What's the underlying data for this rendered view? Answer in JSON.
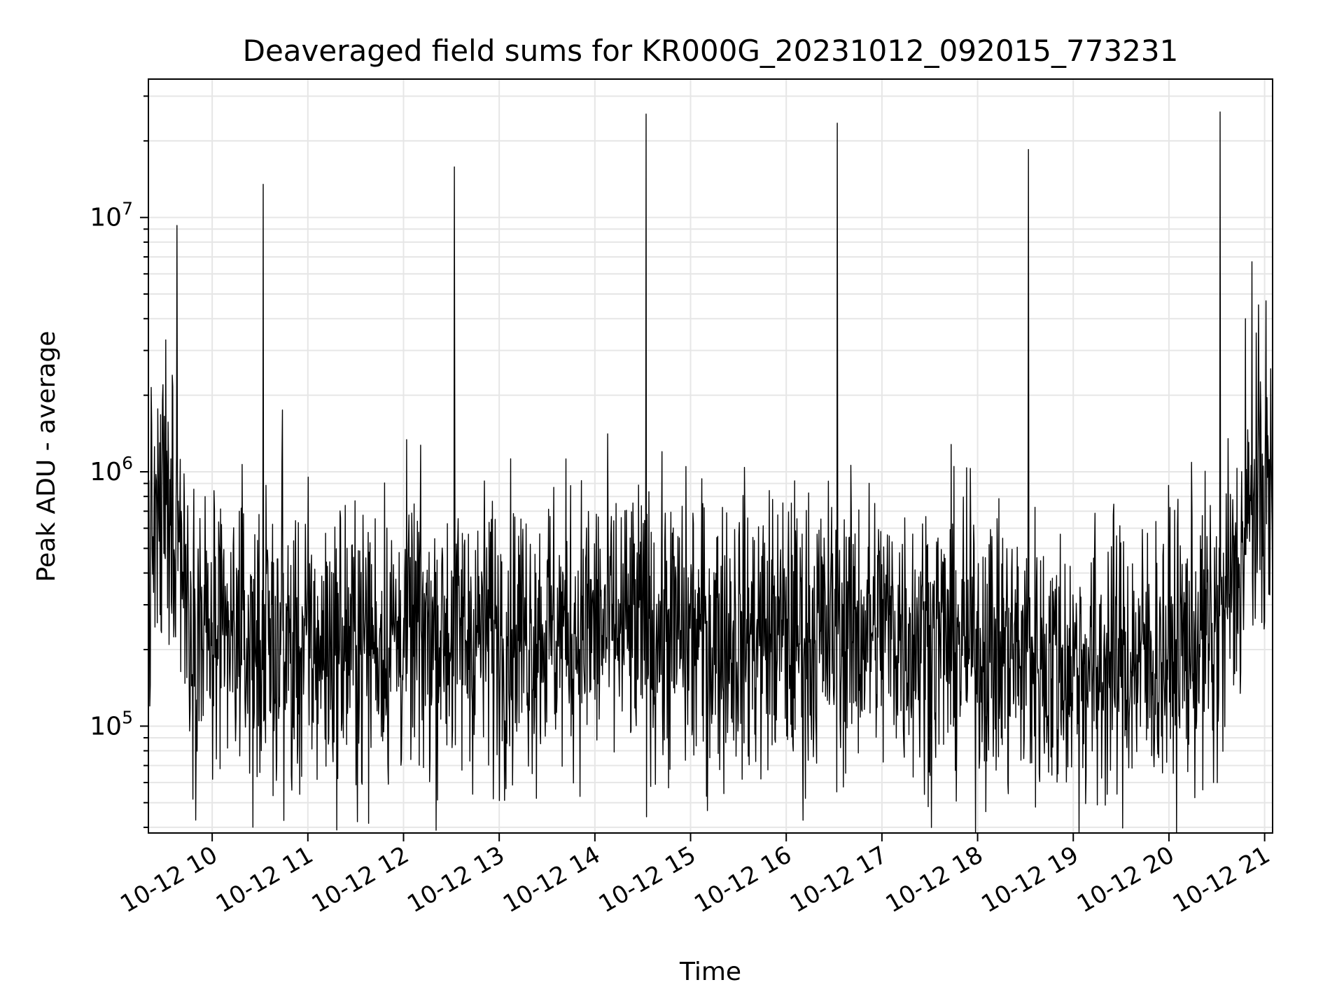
{
  "chart_data": {
    "type": "line",
    "title": "Deaveraged field sums for KR000G_20231012_092015_773231",
    "xlabel": "Time",
    "ylabel": "Peak ADU - average",
    "y_scale": "log",
    "ylim": [
      38000,
      35000000
    ],
    "xlim": [
      "2023-10-12 09:20",
      "2023-10-12 21:05"
    ],
    "grid": true,
    "line_color": "#000000",
    "grid_color": "#e6e6e6",
    "x_ticks": [
      {
        "t": "2023-10-12 10:00",
        "label": "10-12 10"
      },
      {
        "t": "2023-10-12 11:00",
        "label": "10-12 11"
      },
      {
        "t": "2023-10-12 12:00",
        "label": "10-12 12"
      },
      {
        "t": "2023-10-12 13:00",
        "label": "10-12 13"
      },
      {
        "t": "2023-10-12 14:00",
        "label": "10-12 14"
      },
      {
        "t": "2023-10-12 15:00",
        "label": "10-12 15"
      },
      {
        "t": "2023-10-12 16:00",
        "label": "10-12 16"
      },
      {
        "t": "2023-10-12 17:00",
        "label": "10-12 17"
      },
      {
        "t": "2023-10-12 18:00",
        "label": "10-12 18"
      },
      {
        "t": "2023-10-12 19:00",
        "label": "10-12 19"
      },
      {
        "t": "2023-10-12 20:00",
        "label": "10-12 20"
      },
      {
        "t": "2023-10-12 21:00",
        "label": "10-12 21"
      }
    ],
    "y_ticks": [
      {
        "value": 100000,
        "base": "10",
        "exp": "5"
      },
      {
        "value": 1000000,
        "base": "10",
        "exp": "6"
      },
      {
        "value": 10000000,
        "base": "10",
        "exp": "7"
      }
    ],
    "baseline_profile": [
      {
        "t": "2023-10-12 09:20",
        "v": 550000
      },
      {
        "t": "2023-10-12 09:40",
        "v": 600000
      },
      {
        "t": "2023-10-12 09:45",
        "v": 300000
      },
      {
        "t": "2023-10-12 10:00",
        "v": 210000
      },
      {
        "t": "2023-10-12 11:00",
        "v": 200000
      },
      {
        "t": "2023-10-12 12:00",
        "v": 230000
      },
      {
        "t": "2023-10-12 13:00",
        "v": 235000
      },
      {
        "t": "2023-10-12 14:00",
        "v": 245000
      },
      {
        "t": "2023-10-12 15:00",
        "v": 230000
      },
      {
        "t": "2023-10-12 16:00",
        "v": 230000
      },
      {
        "t": "2023-10-12 17:00",
        "v": 245000
      },
      {
        "t": "2023-10-12 18:00",
        "v": 210000
      },
      {
        "t": "2023-10-12 19:00",
        "v": 170000
      },
      {
        "t": "2023-10-12 20:00",
        "v": 190000
      },
      {
        "t": "2023-10-12 20:35",
        "v": 250000
      },
      {
        "t": "2023-10-12 20:45",
        "v": 450000
      },
      {
        "t": "2023-10-12 20:55",
        "v": 800000
      },
      {
        "t": "2023-10-12 21:05",
        "v": 750000
      }
    ],
    "spikes": [
      {
        "t": "2023-10-12 09:27",
        "v": 1300000
      },
      {
        "t": "2023-10-12 09:29",
        "v": 2200000
      },
      {
        "t": "2023-10-12 09:31",
        "v": 3300000
      },
      {
        "t": "2023-10-12 09:35",
        "v": 2400000
      },
      {
        "t": "2023-10-12 09:38",
        "v": 9300000
      },
      {
        "t": "2023-10-12 10:17",
        "v": 700000
      },
      {
        "t": "2023-10-12 10:32",
        "v": 13500000
      },
      {
        "t": "2023-10-12 10:44",
        "v": 1750000
      },
      {
        "t": "2023-10-12 12:32",
        "v": 15800000
      },
      {
        "t": "2023-10-12 12:55",
        "v": 650000
      },
      {
        "t": "2023-10-12 14:32",
        "v": 25500000
      },
      {
        "t": "2023-10-12 16:32",
        "v": 23500000
      },
      {
        "t": "2023-10-12 18:32",
        "v": 18500000
      },
      {
        "t": "2023-10-12 20:32",
        "v": 26000000
      },
      {
        "t": "2023-10-12 20:37",
        "v": 1350000
      },
      {
        "t": "2023-10-12 20:48",
        "v": 4000000
      },
      {
        "t": "2023-10-12 20:52",
        "v": 6700000
      },
      {
        "t": "2023-10-12 21:01",
        "v": 4700000
      }
    ],
    "dips": [
      {
        "t": "2023-10-12 09:21",
        "v": 120000
      },
      {
        "t": "2023-10-12 10:05",
        "v": 68000
      },
      {
        "t": "2023-10-12 10:50",
        "v": 56000
      },
      {
        "t": "2023-10-12 13:00",
        "v": 51000
      },
      {
        "t": "2023-10-12 15:10",
        "v": 53000
      },
      {
        "t": "2023-10-12 16:12",
        "v": 52000
      },
      {
        "t": "2023-10-12 19:15",
        "v": 49000
      },
      {
        "t": "2023-10-12 20:28",
        "v": 60000
      }
    ],
    "noise_spread_decades": 0.28,
    "sample_count": 2400
  }
}
